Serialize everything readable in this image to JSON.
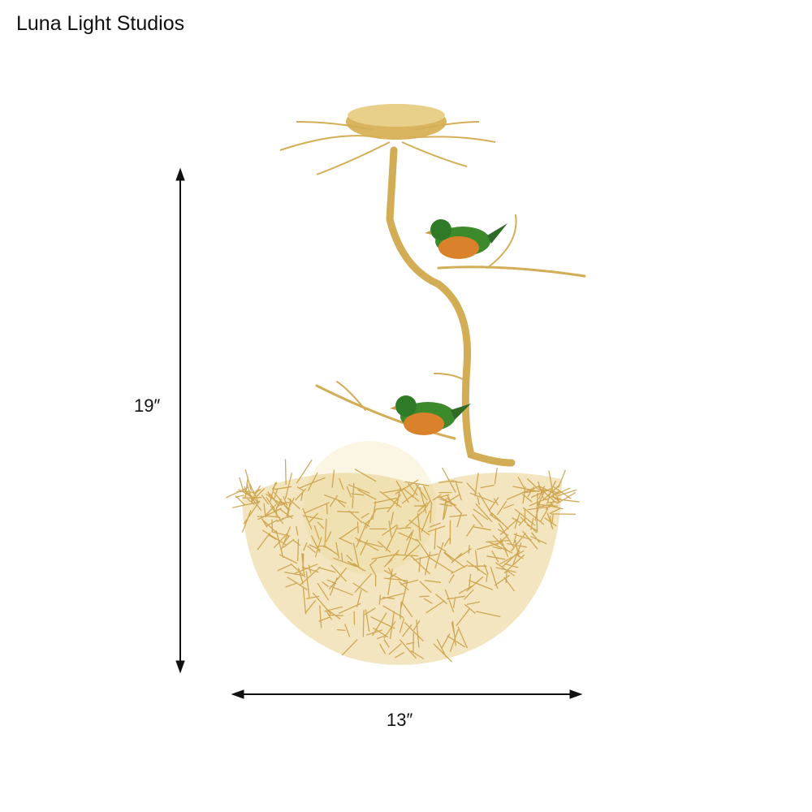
{
  "brand": "Luna Light Studios",
  "dimensions": {
    "height": "19″",
    "width": "13″"
  },
  "colors": {
    "gold": "#d9b45a",
    "bird_green": "#2f8a2a",
    "bird_orange": "#d9822b",
    "globe": "#fbf6e4"
  }
}
